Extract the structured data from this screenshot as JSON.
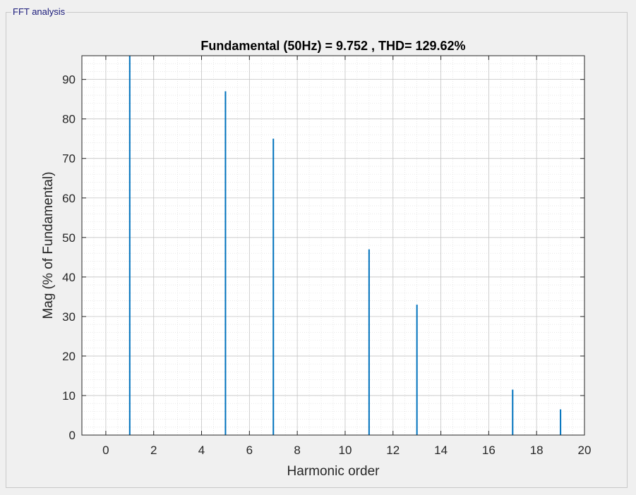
{
  "panel": {
    "title": "FFT analysis"
  },
  "chart_data": {
    "type": "bar",
    "title": "Fundamental (50Hz) = 9.752 , THD= 129.62%",
    "xlabel": "Harmonic order",
    "ylabel": "Mag (% of Fundamental)",
    "xlim": [
      -1,
      20
    ],
    "ylim": [
      0,
      96
    ],
    "xticks": [
      0,
      2,
      4,
      6,
      8,
      10,
      12,
      14,
      16,
      18,
      20
    ],
    "yticks": [
      0,
      10,
      20,
      30,
      40,
      50,
      60,
      70,
      80,
      90
    ],
    "grid": true,
    "minor_grid": true,
    "bar_color": "#0072bd",
    "x": [
      1,
      5,
      7,
      11,
      13,
      17,
      19
    ],
    "values": [
      100,
      87,
      75,
      47,
      33,
      11.5,
      6.5
    ]
  }
}
